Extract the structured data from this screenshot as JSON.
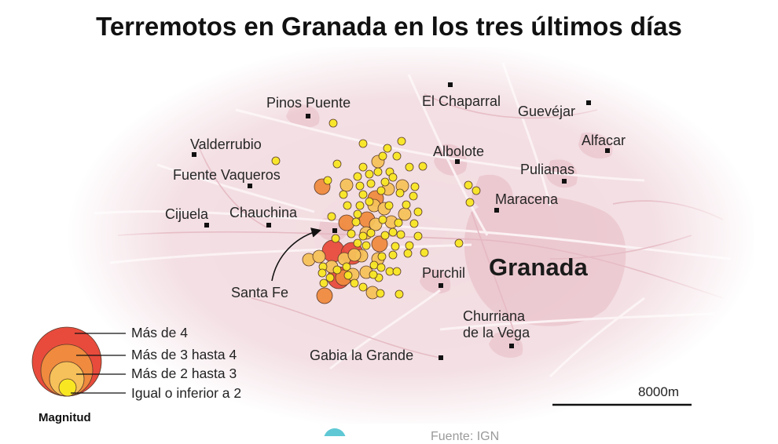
{
  "title": "Terremotos en Granada en los tres últimos días",
  "places": {
    "pinos_puente": "Pinos Puente",
    "el_chaparral": "El Chaparral",
    "guevejar": "Guevéjar",
    "valderrubio": "Valderrubio",
    "albolote": "Albolote",
    "alfacar": "Alfacar",
    "fuente_vaqueros": "Fuente Vaqueros",
    "pulianas": "Pulianas",
    "maracena": "Maracena",
    "cijuela": "Cijuela",
    "chauchina": "Chauchina",
    "santa_fe": "Santa Fe",
    "purchil": "Purchil",
    "churriana_line1": "Churriana",
    "churriana_line2": "de la Vega",
    "gabia": "Gabia la Grande"
  },
  "city": "Granada",
  "legend": {
    "title": "Magnitud",
    "items": [
      {
        "label": "Más de 4",
        "color": "#e84b3c"
      },
      {
        "label": "Más de 3 hasta 4",
        "color": "#ef8a3e"
      },
      {
        "label": "Más de 2 hasta 3",
        "color": "#f6c15a"
      },
      {
        "label": "Igual o inferior a 2",
        "color": "#f8e622"
      }
    ]
  },
  "scale_bar": {
    "label": "8000m"
  },
  "source": "Fuente: IGN",
  "colors": {
    "map_base": "#f2dce1",
    "urban": "#e9c4cc",
    "marker_outline": "#5a3a2a",
    "logo": "#5fc8d4"
  }
}
